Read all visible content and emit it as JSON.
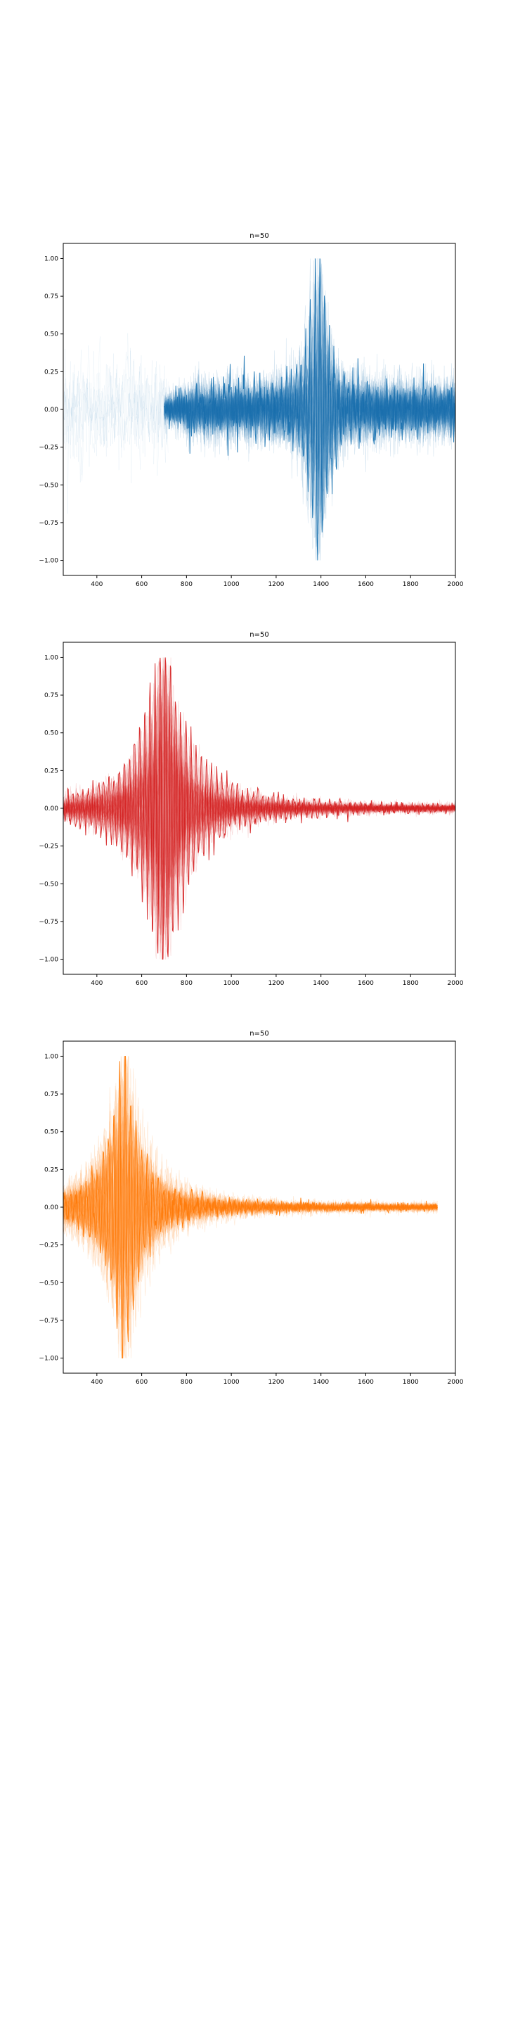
{
  "chart_data": [
    {
      "type": "line",
      "title": "n=50",
      "xlabel": "",
      "ylabel": "",
      "xlim": [
        250,
        2000
      ],
      "ylim": [
        -1.1,
        1.1
      ],
      "xticks": [
        400,
        600,
        800,
        1000,
        1200,
        1400,
        1600,
        1800,
        2000
      ],
      "yticks": [
        -1.0,
        -0.75,
        -0.5,
        -0.25,
        0.0,
        0.25,
        0.5,
        0.75,
        1.0
      ],
      "ytick_labels": [
        "−1.00",
        "−0.75",
        "−0.50",
        "−0.25",
        "0.00",
        "0.25",
        "0.50",
        "0.75",
        "1.00"
      ],
      "grid": false,
      "color": "#1f77b4",
      "trace_count": 50,
      "signal_start": 700,
      "signal_end": 2000,
      "peak_x": 1390,
      "peak_max": 1.0,
      "peak_min": -1.0
    },
    {
      "type": "line",
      "title": "n=50",
      "xlabel": "",
      "ylabel": "",
      "xlim": [
        250,
        2000
      ],
      "ylim": [
        -1.1,
        1.1
      ],
      "xticks": [
        400,
        600,
        800,
        1000,
        1200,
        1400,
        1600,
        1800,
        2000
      ],
      "yticks": [
        -1.0,
        -0.75,
        -0.5,
        -0.25,
        0.0,
        0.25,
        0.5,
        0.75,
        1.0
      ],
      "ytick_labels": [
        "−1.00",
        "−0.75",
        "−0.50",
        "−0.25",
        "0.00",
        "0.25",
        "0.50",
        "0.75",
        "1.00"
      ],
      "grid": false,
      "color": "#d62728",
      "trace_count": 50,
      "signal_start": 250,
      "signal_end": 2000,
      "peak_x": 700,
      "peak_max": 1.0,
      "peak_min": -1.0
    },
    {
      "type": "line",
      "title": "n=50",
      "xlabel": "",
      "ylabel": "",
      "xlim": [
        250,
        2000
      ],
      "ylim": [
        -1.1,
        1.1
      ],
      "xticks": [
        400,
        600,
        800,
        1000,
        1200,
        1400,
        1600,
        1800,
        2000
      ],
      "yticks": [
        -1.0,
        -0.75,
        -0.5,
        -0.25,
        0.0,
        0.25,
        0.5,
        0.75,
        1.0
      ],
      "ytick_labels": [
        "−1.00",
        "−0.75",
        "−0.50",
        "−0.25",
        "0.00",
        "0.25",
        "0.50",
        "0.75",
        "1.00"
      ],
      "grid": false,
      "color": "#ff7f0e",
      "trace_count": 50,
      "signal_start": 250,
      "signal_end": 1920,
      "peak_x": 520,
      "peak_max": 1.0,
      "peak_min": -1.0
    }
  ]
}
